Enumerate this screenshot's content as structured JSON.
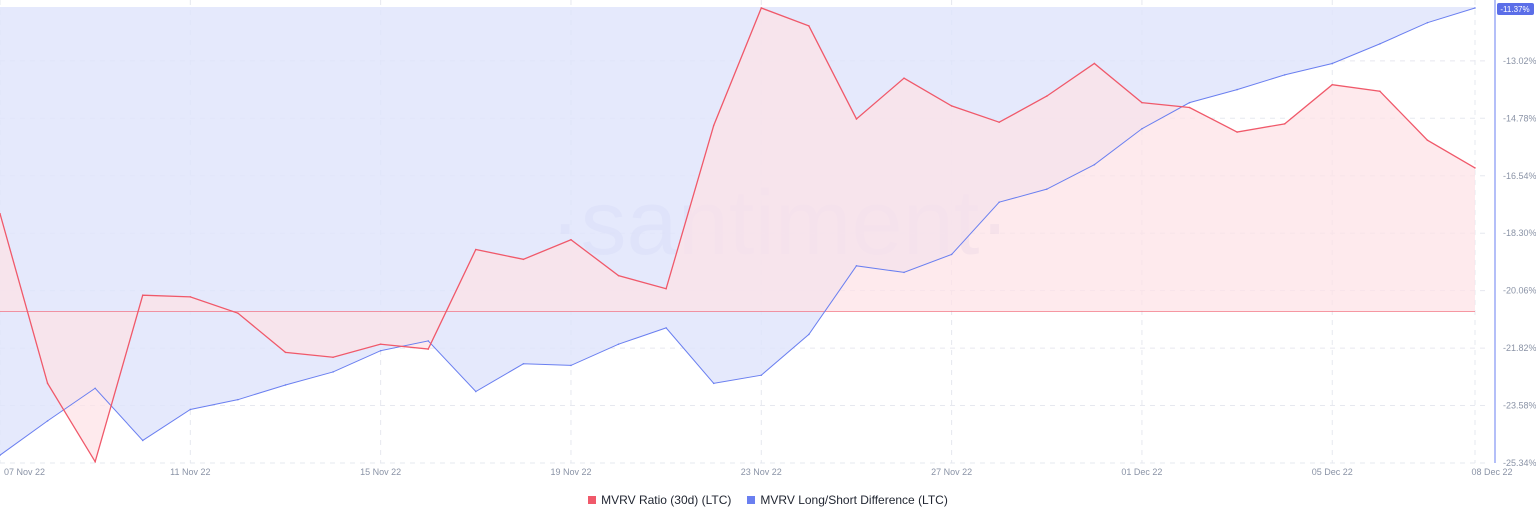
{
  "colors": {
    "mvrv_ratio": "#f0596a",
    "mvrv_ratio_fill": "#fde2e6",
    "long_short": "#6a7ff0",
    "long_short_fill": "#dfe3fb",
    "badge_bg": "#5b6ee8",
    "badge_text": "#ffffff",
    "grid": "#e6e8ef",
    "axis": "#8a93a6"
  },
  "watermark": "·santiment·",
  "chart_data": {
    "type": "area",
    "x": [
      "07 Nov 22",
      "08 Nov 22",
      "09 Nov 22",
      "10 Nov 22",
      "11 Nov 22",
      "12 Nov 22",
      "13 Nov 22",
      "14 Nov 22",
      "15 Nov 22",
      "16 Nov 22",
      "17 Nov 22",
      "18 Nov 22",
      "19 Nov 22",
      "20 Nov 22",
      "21 Nov 22",
      "22 Nov 22",
      "23 Nov 22",
      "24 Nov 22",
      "25 Nov 22",
      "26 Nov 22",
      "27 Nov 22",
      "28 Nov 22",
      "29 Nov 22",
      "30 Nov 22",
      "01 Dec 22",
      "02 Dec 22",
      "03 Dec 22",
      "04 Dec 22",
      "05 Dec 22",
      "06 Dec 22",
      "07 Dec 22",
      "08 Dec 22"
    ],
    "x_tick_labels": [
      "07 Nov 22",
      "11 Nov 22",
      "15 Nov 22",
      "19 Nov 22",
      "23 Nov 22",
      "27 Nov 22",
      "01 Dec 22",
      "05 Dec 22",
      "08 Dec 22"
    ],
    "right_axis": {
      "ticks": [
        "-13.02%",
        "-14.78%",
        "-16.54%",
        "-18.30%",
        "-20.06%",
        "-21.82%",
        "-23.58%",
        "-25.34%"
      ],
      "tick_values": [
        -13.02,
        -14.78,
        -16.54,
        -18.3,
        -20.06,
        -21.82,
        -23.58,
        -25.34
      ],
      "range": [
        -25.34,
        -11.37
      ],
      "current_value_badge": "-11.37%"
    },
    "series": [
      {
        "name": "MVRV Ratio (30d) (LTC)",
        "axis": "hidden",
        "baseline": -20.7,
        "values": [
          -17.7,
          -22.9,
          -25.3,
          -20.2,
          -20.25,
          -20.75,
          -21.95,
          -22.1,
          -21.7,
          -21.85,
          -18.8,
          -19.1,
          -18.5,
          -19.6,
          -20.0,
          -15.0,
          -11.4,
          -11.95,
          -14.8,
          -13.55,
          -14.4,
          -14.9,
          -14.1,
          -13.1,
          -14.3,
          -14.45,
          -15.2,
          -14.95,
          -13.75,
          -13.95,
          -15.45,
          -16.3
        ]
      },
      {
        "name": "MVRV Long/Short Difference (LTC)",
        "axis": "right",
        "baseline": -11.37,
        "values": [
          -25.1,
          -24.05,
          -23.05,
          -24.65,
          -23.7,
          -23.4,
          -22.95,
          -22.55,
          -21.9,
          -21.6,
          -23.15,
          -22.3,
          -22.35,
          -21.7,
          -21.2,
          -22.9,
          -22.65,
          -21.4,
          -19.3,
          -19.5,
          -18.95,
          -17.35,
          -16.95,
          -16.2,
          -15.1,
          -14.3,
          -13.9,
          -13.45,
          -13.1,
          -12.5,
          -11.85,
          -11.4
        ]
      }
    ],
    "legend": [
      "MVRV Ratio (30d) (LTC)",
      "MVRV Long/Short Difference (LTC)"
    ],
    "legend_position": "bottom-center",
    "grid": true
  }
}
